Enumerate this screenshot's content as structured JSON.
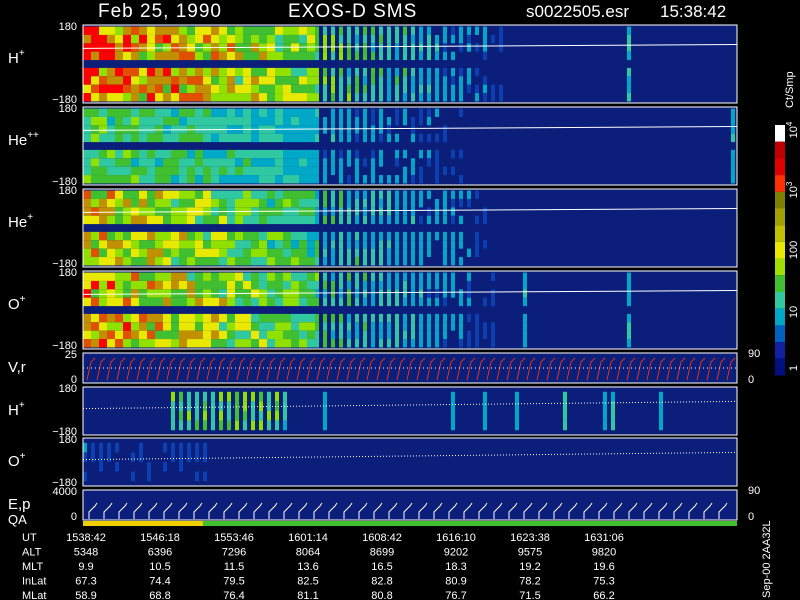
{
  "header": {
    "date": "Feb 25, 1990",
    "instrument": "EXOS-D SMS",
    "file": "s0022505.esr",
    "time": "15:38:42"
  },
  "panels": [
    {
      "label": "H",
      "sup": "+",
      "ticks": [
        "180",
        "−180"
      ]
    },
    {
      "label": "He",
      "sup": "++",
      "ticks": [
        "180",
        "−180"
      ]
    },
    {
      "label": "He",
      "sup": "+",
      "ticks": [
        "180",
        "−180"
      ]
    },
    {
      "label": "O",
      "sup": "+",
      "ticks": [
        "180",
        "−180"
      ]
    },
    {
      "label": "V,r",
      "ticks": [
        "25",
        "0"
      ],
      "right_ticks": [
        "90",
        "0"
      ]
    },
    {
      "label": "H",
      "sup": "+",
      "ticks": [
        "180",
        "−180"
      ]
    },
    {
      "label": "O",
      "sup": "+",
      "ticks": [
        "180",
        "−180"
      ]
    },
    {
      "label": "E,p",
      "ticks": [
        "4000",
        "0"
      ],
      "right_ticks": [
        "90",
        "0"
      ],
      "qa_label": "QA"
    }
  ],
  "colorbar": {
    "unit": "Ct/Smp",
    "ticks": [
      {
        "base": "10",
        "exp": "4"
      },
      {
        "base": "10",
        "exp": "3"
      },
      {
        "base": "100"
      },
      {
        "base": "10"
      },
      {
        "base": "1"
      }
    ]
  },
  "table": {
    "rows": [
      {
        "label": "UT",
        "values": [
          "1538:42",
          "1546:18",
          "1553:46",
          "1601:14",
          "1608:42",
          "1616:10",
          "1623:38",
          "1631:06"
        ]
      },
      {
        "label": "ALT",
        "values": [
          "5348",
          "6396",
          "7296",
          "8064",
          "8699",
          "9202",
          "9575",
          "9820"
        ]
      },
      {
        "label": "MLT",
        "values": [
          "9.9",
          "10.5",
          "11.5",
          "13.6",
          "16.5",
          "18.3",
          "19.2",
          "19.6"
        ]
      },
      {
        "label": "InLat",
        "values": [
          "67.3",
          "74.4",
          "79.5",
          "82.5",
          "82.8",
          "80.9",
          "78.2",
          "75.3"
        ]
      },
      {
        "label": "MLat",
        "values": [
          "58.9",
          "68.8",
          "76.4",
          "81.1",
          "80.8",
          "76.7",
          "71.5",
          "66.2"
        ]
      }
    ]
  },
  "footer": "Sep-00 2AA32L"
}
